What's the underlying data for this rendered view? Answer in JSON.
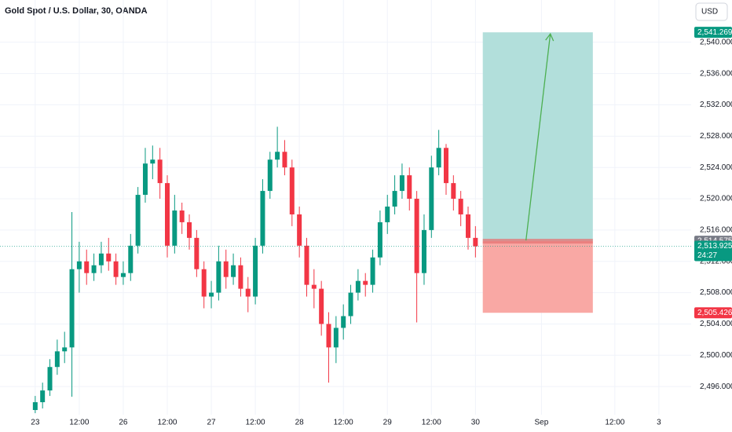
{
  "chart_data": {
    "type": "candlestick",
    "title": "Gold Spot / U.S. Dollar, 30, OANDA",
    "currency": "USD",
    "x": [
      0,
      2,
      4,
      6,
      8,
      10,
      12,
      14,
      16,
      18,
      20,
      22,
      24,
      26,
      28,
      30,
      32,
      34,
      36,
      38,
      40,
      42,
      44,
      46,
      48,
      50,
      52,
      54,
      56,
      58,
      60,
      62,
      64,
      66,
      68,
      70,
      72,
      74,
      76,
      78,
      80,
      82,
      84,
      86,
      88,
      90,
      92,
      94,
      96,
      98,
      100,
      102,
      104,
      106,
      108,
      110,
      112,
      114,
      116,
      118,
      120
    ],
    "open": [
      2493.0,
      2494.0,
      2495.5,
      2498.5,
      2500.5,
      2501.0,
      2511.0,
      2512.0,
      2510.5,
      2511.5,
      2513.0,
      2512.0,
      2510.0,
      2510.5,
      2514.0,
      2520.5,
      2524.5,
      2525.0,
      2522.0,
      2514.0,
      2518.5,
      2517.0,
      2515.0,
      2511.0,
      2507.5,
      2508.0,
      2512.0,
      2510.0,
      2511.5,
      2508.5,
      2507.5,
      2514.0,
      2521.0,
      2525.0,
      2526.0,
      2524.0,
      2518.0,
      2514.0,
      2509.0,
      2508.5,
      2504.0,
      2501.0,
      2503.5,
      2505.0,
      2508.0,
      2509.5,
      2509.0,
      2512.5,
      2517.0,
      2519.0,
      2521.0,
      2523.0,
      2520.0,
      2510.5,
      2516.0,
      2524.0,
      2526.5,
      2522.0,
      2520.0,
      2518.0,
      2515.0
    ],
    "high": [
      2494.8,
      2496.5,
      2499.5,
      2502.0,
      2503.0,
      2518.3,
      2514.5,
      2513.5,
      2513.0,
      2514.5,
      2515.0,
      2513.0,
      2512.0,
      2515.5,
      2521.5,
      2526.5,
      2526.8,
      2526.5,
      2523.0,
      2520.5,
      2519.5,
      2518.0,
      2516.0,
      2512.0,
      2509.5,
      2514.0,
      2513.5,
      2513.0,
      2512.5,
      2510.0,
      2515.0,
      2522.5,
      2526.0,
      2529.2,
      2527.5,
      2525.0,
      2519.0,
      2515.0,
      2511.0,
      2509.5,
      2505.5,
      2505.0,
      2506.5,
      2509.0,
      2511.0,
      2510.5,
      2513.5,
      2518.5,
      2520.5,
      2523.0,
      2524.5,
      2524.0,
      2521.0,
      2518.0,
      2525.5,
      2528.8,
      2527.0,
      2523.0,
      2521.0,
      2519.0,
      2516.5
    ],
    "low": [
      2492.6,
      2493.2,
      2494.8,
      2497.5,
      2499.0,
      2494.7,
      2508.0,
      2509.0,
      2509.5,
      2510.5,
      2510.8,
      2509.0,
      2509.0,
      2509.5,
      2513.0,
      2519.5,
      2522.5,
      2520.0,
      2512.5,
      2513.0,
      2515.5,
      2513.5,
      2510.0,
      2506.0,
      2506.0,
      2507.0,
      2508.5,
      2509.0,
      2507.5,
      2505.5,
      2506.5,
      2513.0,
      2520.0,
      2524.0,
      2523.0,
      2516.5,
      2512.5,
      2507.5,
      2506.0,
      2502.5,
      2496.5,
      2499.0,
      2502.0,
      2504.0,
      2507.0,
      2507.5,
      2508.0,
      2511.5,
      2515.5,
      2518.0,
      2520.0,
      2518.5,
      2504.2,
      2509.0,
      2515.0,
      2523.0,
      2520.5,
      2518.5,
      2516.5,
      2513.5,
      2512.5
    ],
    "close": [
      2494.0,
      2495.5,
      2498.5,
      2500.5,
      2501.0,
      2511.0,
      2512.0,
      2510.5,
      2511.5,
      2513.0,
      2512.0,
      2510.0,
      2510.5,
      2514.0,
      2520.5,
      2524.5,
      2525.0,
      2522.0,
      2514.0,
      2518.5,
      2517.0,
      2515.0,
      2511.0,
      2507.5,
      2508.0,
      2512.0,
      2510.0,
      2511.5,
      2508.5,
      2507.5,
      2514.0,
      2521.0,
      2525.0,
      2526.0,
      2524.0,
      2518.0,
      2514.0,
      2509.0,
      2508.5,
      2504.0,
      2501.0,
      2503.5,
      2505.0,
      2508.0,
      2509.5,
      2509.0,
      2512.5,
      2517.0,
      2519.0,
      2521.0,
      2523.0,
      2520.0,
      2510.5,
      2516.0,
      2524.0,
      2526.5,
      2522.0,
      2520.0,
      2518.0,
      2515.0,
      2513.925
    ],
    "up_color": "#089981",
    "down_color": "#f23645",
    "xlim": [
      -9.6,
      178.8
    ],
    "xticks": [
      {
        "value": 0,
        "label": "23"
      },
      {
        "value": 12,
        "label": "12:00"
      },
      {
        "value": 24,
        "label": "26"
      },
      {
        "value": 36,
        "label": "12:00"
      },
      {
        "value": 48,
        "label": "27"
      },
      {
        "value": 60,
        "label": "12:00"
      },
      {
        "value": 72,
        "label": "28"
      },
      {
        "value": 84,
        "label": "12:00"
      },
      {
        "value": 96,
        "label": "29"
      },
      {
        "value": 108,
        "label": "12:00"
      },
      {
        "value": 120,
        "label": "30"
      },
      {
        "value": 138,
        "label": "Sep"
      },
      {
        "value": 158,
        "label": "12:00"
      },
      {
        "value": 170,
        "label": "3"
      }
    ],
    "ylim": [
      2492.4,
      2545.4
    ],
    "yticks": [
      {
        "value": 2496,
        "label": "2,496.000"
      },
      {
        "value": 2500,
        "label": "2,500.000"
      },
      {
        "value": 2504,
        "label": "2,504.000"
      },
      {
        "value": 2508,
        "label": "2,508.000"
      },
      {
        "value": 2512,
        "label": "2,512.000"
      },
      {
        "value": 2516,
        "label": "2,516.000"
      },
      {
        "value": 2520,
        "label": "2,520.000"
      },
      {
        "value": 2524,
        "label": "2,524.000"
      },
      {
        "value": 2528,
        "label": "2,528.000"
      },
      {
        "value": 2532,
        "label": "2,532.000"
      },
      {
        "value": 2536,
        "label": "2,536.000"
      },
      {
        "value": 2540,
        "label": "2,540.000"
      }
    ],
    "grid": true,
    "last_price": {
      "value": 2513.925,
      "label": "2,513.925",
      "countdown": "24:27",
      "color": "#089981"
    },
    "position": {
      "x": [
        122,
        152
      ],
      "entry": {
        "value": 2514.575,
        "label": "2,514.575"
      },
      "target": {
        "value": 2541.269,
        "label": "2,541.269"
      },
      "stop": {
        "value": 2505.426,
        "label": "2,505.426"
      },
      "profit_color": "#b2dfdb",
      "loss_color": "#f9a8a4"
    }
  }
}
